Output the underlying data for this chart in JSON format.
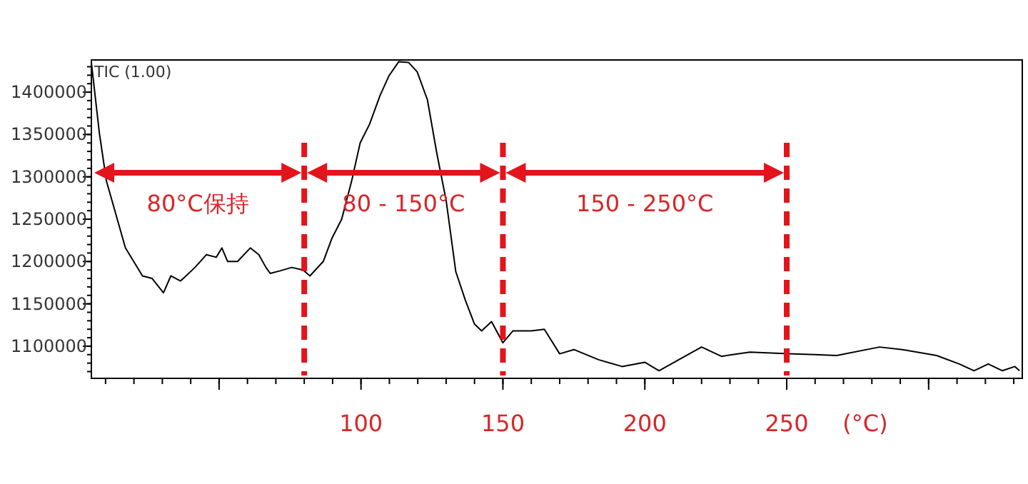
{
  "chart_data": {
    "type": "line",
    "xlabel": "(°C)",
    "xlim": [
      5,
      333
    ],
    "ylim": [
      1062000,
      1438000
    ],
    "xticks": [
      {
        "value": 50,
        "label": null
      },
      100,
      150,
      200,
      250,
      {
        "value": 300,
        "label": null
      }
    ],
    "yticks": [
      1100000,
      1150000,
      1200000,
      1250000,
      1300000,
      1350000,
      1400000
    ],
    "grid": false,
    "marker": "none",
    "line_style": "solid",
    "series": [
      {
        "color": "#000000",
        "x": [
          5,
          7.8,
          10.3,
          17,
          23,
          26.4,
          30.4,
          33,
          36.4,
          41.5,
          45.5,
          49,
          51,
          53,
          56.5,
          61,
          64,
          66.5,
          68,
          71.5,
          75.6,
          79.6,
          82,
          86.7,
          89.7,
          93.2,
          96.7,
          99.7,
          103,
          106.7,
          109.8,
          113.3,
          116.8,
          119.8,
          123.4,
          126.7,
          130,
          133.4,
          136.8,
          140,
          142.5,
          146,
          150,
          153.5,
          160,
          164.6,
          170,
          175,
          183.7,
          192,
          200,
          205,
          220,
          227,
          237,
          250.5,
          260,
          267.6,
          282.7,
          290.7,
          302.8,
          310.8,
          316,
          321,
          326,
          330.4,
          332
        ],
        "values": [
          1435000,
          1352000,
          1295000,
          1216000,
          1183000,
          1180000,
          1163000,
          1183000,
          1177000,
          1193000,
          1208000,
          1205000,
          1216000,
          1200000,
          1200000,
          1216000,
          1208000,
          1193000,
          1186000,
          1189000,
          1193000,
          1190000,
          1183000,
          1200000,
          1227000,
          1250000,
          1295000,
          1340000,
          1362000,
          1396000,
          1419000,
          1436000,
          1435000,
          1424000,
          1391000,
          1328000,
          1272000,
          1188000,
          1154000,
          1126000,
          1118000,
          1129000,
          1104000,
          1118000,
          1118000,
          1120000,
          1091000,
          1096000,
          1084000,
          1076000,
          1081000,
          1071000,
          1099000,
          1088000,
          1093000,
          1091000,
          1090000,
          1089000,
          1099000,
          1096000,
          1089000,
          1079000,
          1071000,
          1079000,
          1071000,
          1076000,
          1071000
        ]
      }
    ],
    "ref_lines": [
      {
        "axis": "x",
        "value": 80,
        "color": "#e3141b",
        "line_style": "dashed"
      },
      {
        "axis": "x",
        "value": 150,
        "color": "#e3141b",
        "line_style": "dashed"
      },
      {
        "axis": "x",
        "value": 250,
        "color": "#e3141b",
        "line_style": "dashed"
      }
    ],
    "annotations": [
      "TIC (1.00)",
      "80°C保持",
      "80 - 150°C",
      "150 - 250°C"
    ]
  }
}
